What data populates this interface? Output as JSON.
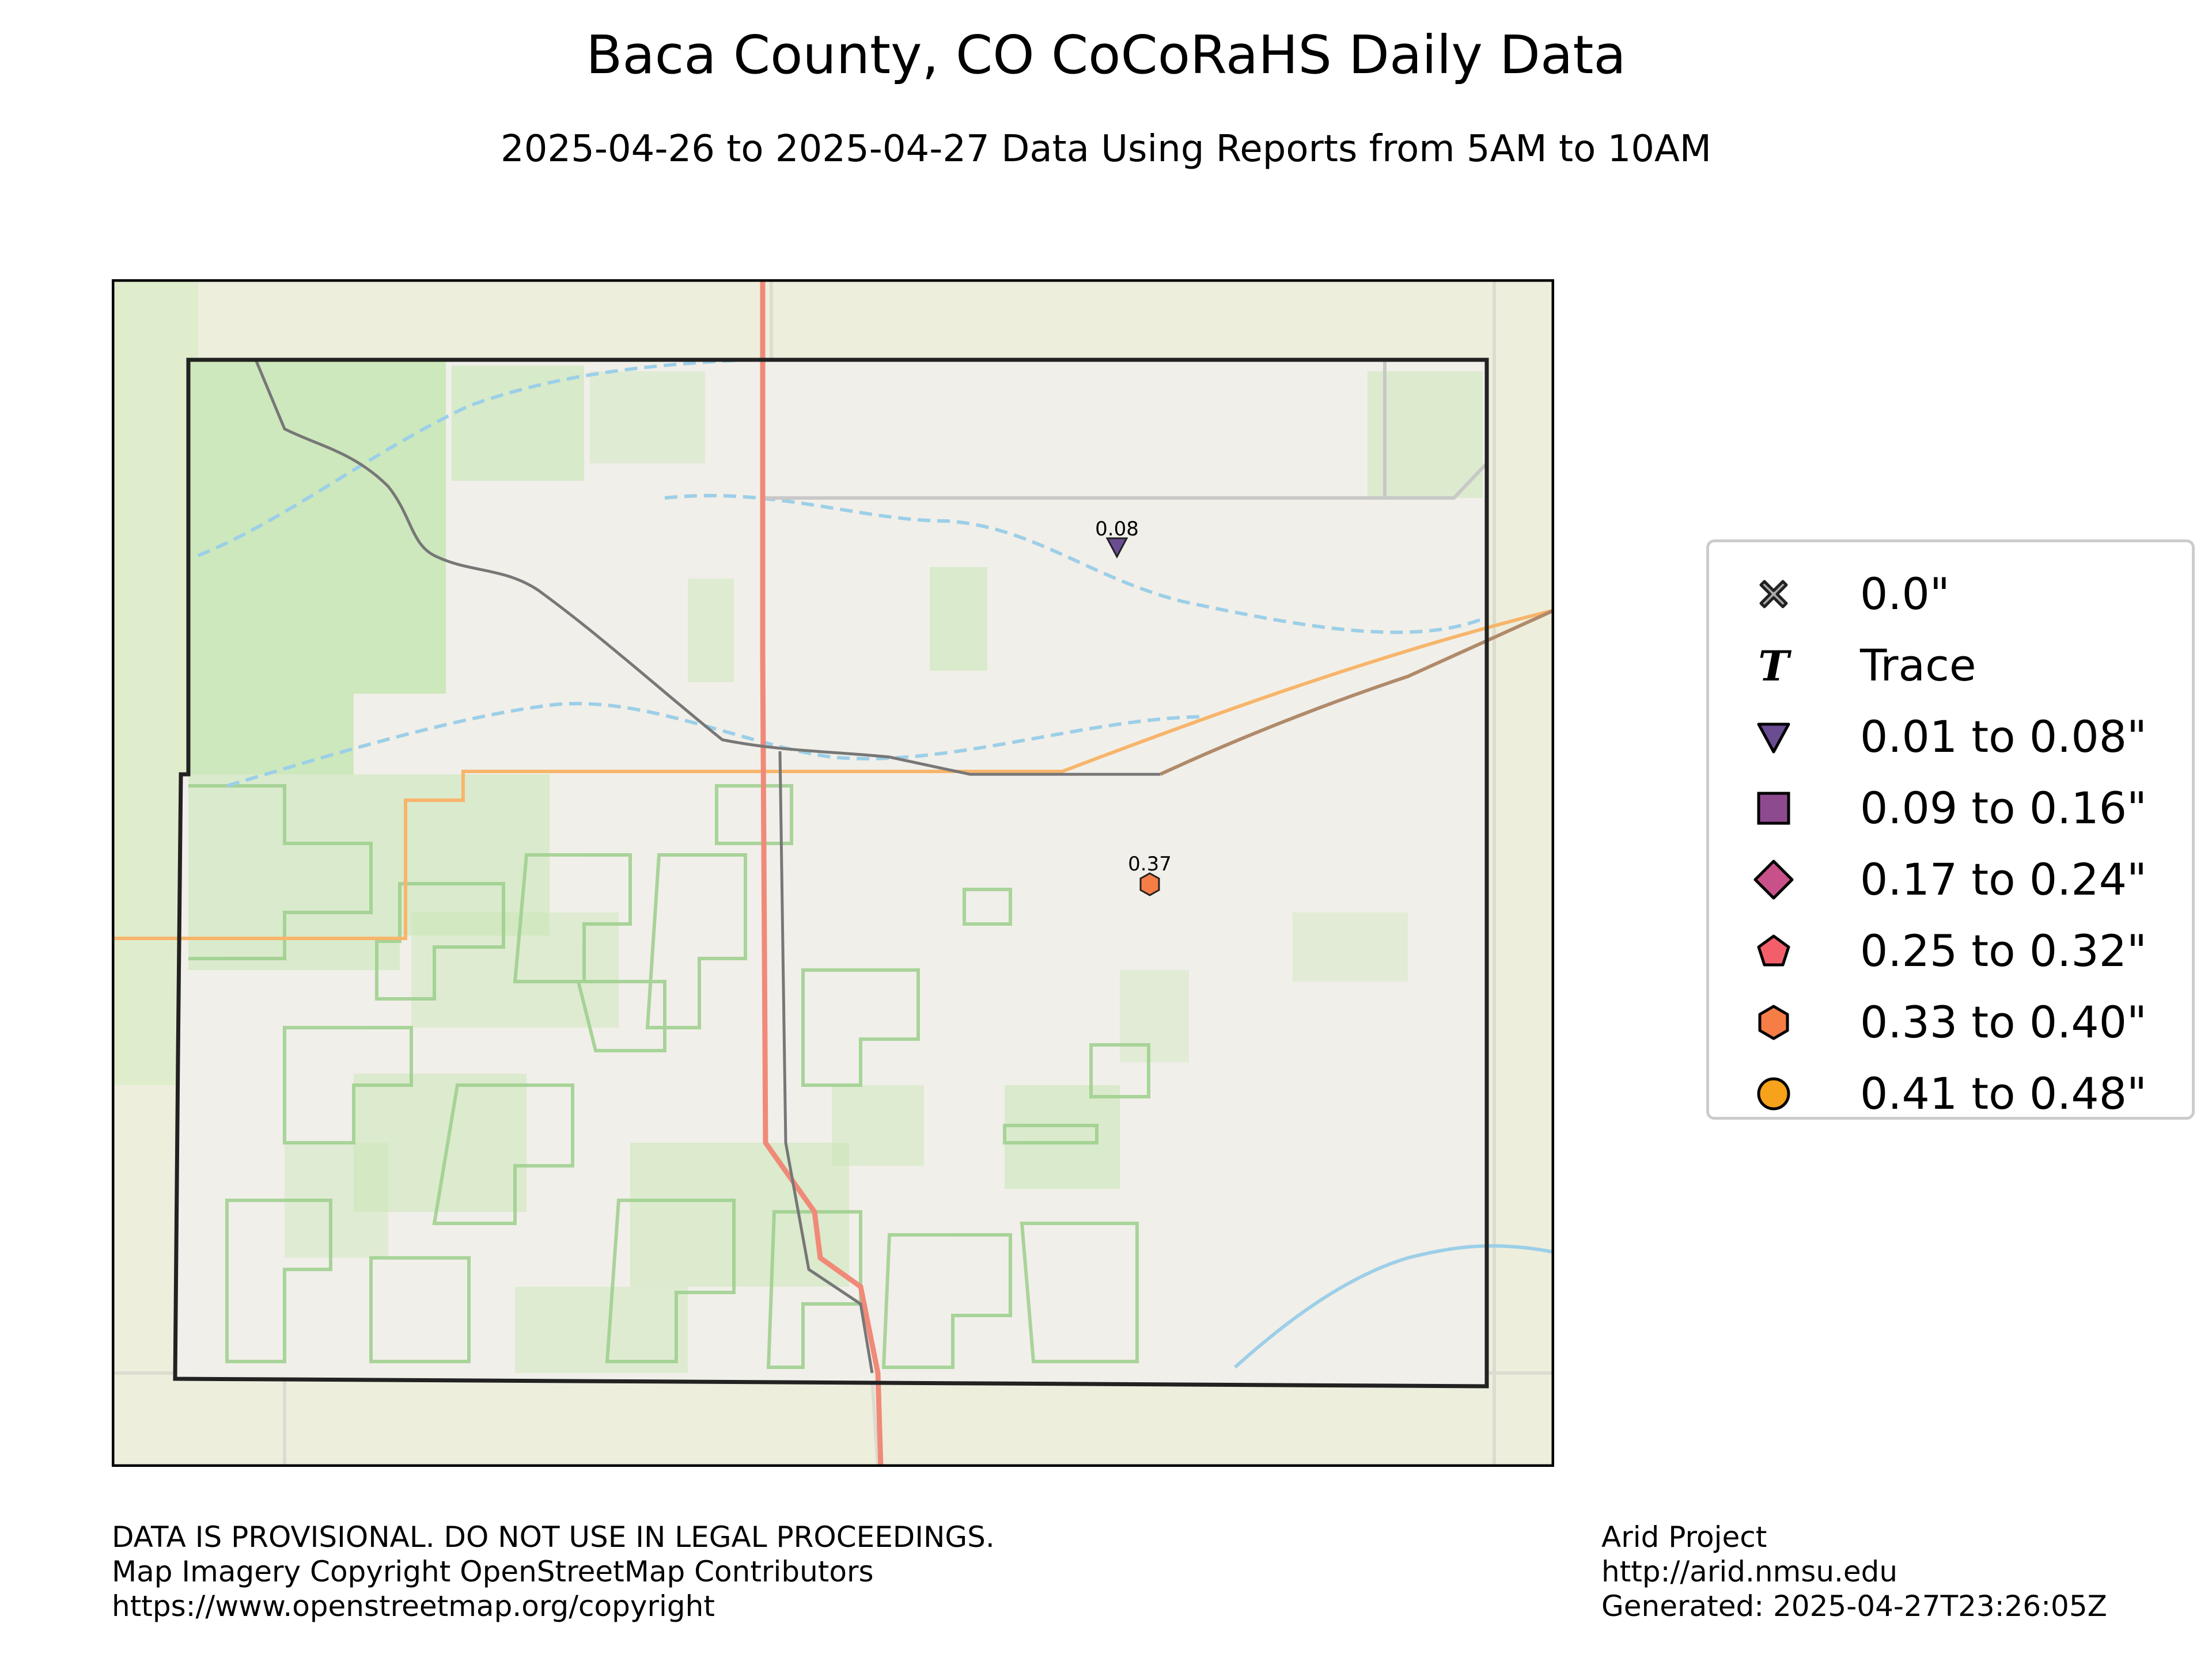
{
  "title": "Baca County, CO CoCoRaHS Daily Data",
  "subtitle": "2025-04-26 to 2025-04-27 Data Using Reports from 5AM to 10AM",
  "stations": [
    {
      "label": "0.08",
      "value": 0.08,
      "symbol": "triangle-down",
      "color": "#6a4c93"
    },
    {
      "label": "0.37",
      "value": 0.37,
      "symbol": "hexagon",
      "color": "#f26b3a"
    }
  ],
  "legend": [
    {
      "label": "0.0\"",
      "symbol": "x-icon",
      "color": "#aaaaaa"
    },
    {
      "label": "Trace",
      "symbol": "t-icon",
      "color": "#000000"
    },
    {
      "label": "0.01 to 0.08\"",
      "symbol": "triangle-down",
      "color": "#6a4c93"
    },
    {
      "label": "0.09 to 0.16\"",
      "symbol": "square",
      "color": "#8e4a8f"
    },
    {
      "label": "0.17 to 0.24\"",
      "symbol": "diamond",
      "color": "#c9518a"
    },
    {
      "label": "0.25 to 0.32\"",
      "symbol": "pentagon",
      "color": "#f25f6b"
    },
    {
      "label": "0.33 to 0.40\"",
      "symbol": "hexagon",
      "color": "#f57d46"
    },
    {
      "label": "0.41 to 0.48\"",
      "symbol": "circle",
      "color": "#f7a21b"
    }
  ],
  "footer_left": [
    "DATA IS PROVISIONAL. DO NOT USE IN LEGAL PROCEEDINGS.",
    "Map Imagery Copyright OpenStreetMap Contributors",
    "https://www.openstreetmap.org/copyright"
  ],
  "footer_right": [
    "Arid Project",
    "http://arid.nmsu.edu",
    "Generated: 2025-04-27T23:26:05Z"
  ],
  "colors": {
    "map_background": "#eeeedd",
    "county_fill": "#f1efe9",
    "forest_green": "#c7e6b4",
    "river_blue": "#9ccfe8",
    "highway_red": "#f08a78",
    "boundary_orange": "#f7b56b",
    "road_gray": "#777777"
  }
}
